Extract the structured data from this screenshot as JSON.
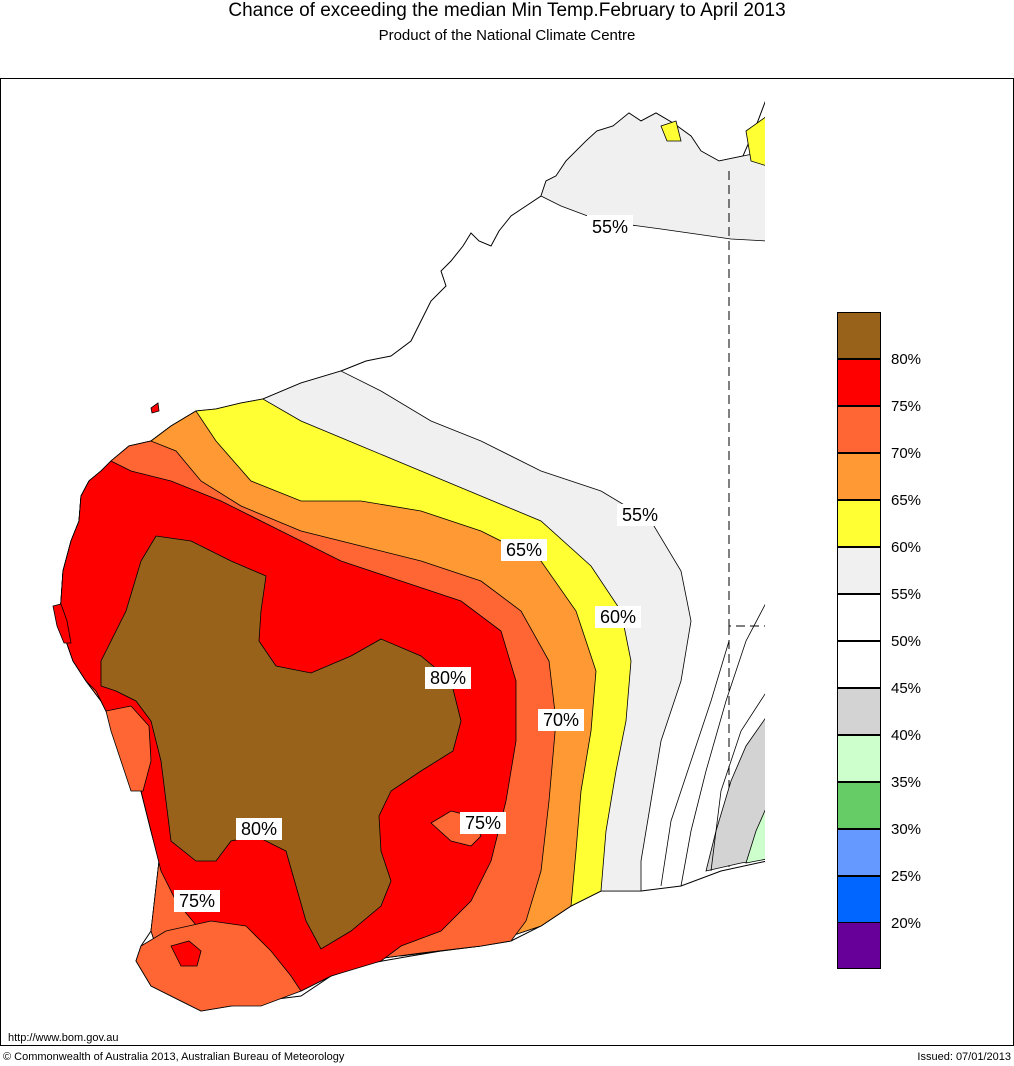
{
  "header": {
    "title": "Chance of exceeding the median Min Temp.February to April 2013",
    "subtitle": "Product of the National Climate Centre"
  },
  "map": {
    "region": "Western Australia",
    "contour_labels": [
      "55%",
      "55%",
      "65%",
      "60%",
      "80%",
      "70%",
      "75%",
      "80%",
      "75%"
    ]
  },
  "legend": {
    "items": [
      {
        "label": "",
        "color": "#99621a"
      },
      {
        "label": "80%",
        "color": "#ff0000"
      },
      {
        "label": "75%",
        "color": "#ff6633"
      },
      {
        "label": "70%",
        "color": "#ff9933"
      },
      {
        "label": "65%",
        "color": "#ffff33"
      },
      {
        "label": "60%",
        "color": "#f0f0f0"
      },
      {
        "label": "55%",
        "color": "#ffffff"
      },
      {
        "label": "50%",
        "color": "#ffffff"
      },
      {
        "label": "45%",
        "color": "#d3d3d3"
      },
      {
        "label": "40%",
        "color": "#ccffcc"
      },
      {
        "label": "35%",
        "color": "#66cc66"
      },
      {
        "label": "30%",
        "color": "#6699ff"
      },
      {
        "label": "25%",
        "color": "#0066ff"
      },
      {
        "label": "20%",
        "color": "#660099"
      }
    ]
  },
  "footer": {
    "url": "http://www.bom.gov.au",
    "copyright": "© Commonwealth of Australia 2013, Australian Bureau of Meteorology",
    "issued": "Issued: 07/01/2013"
  }
}
